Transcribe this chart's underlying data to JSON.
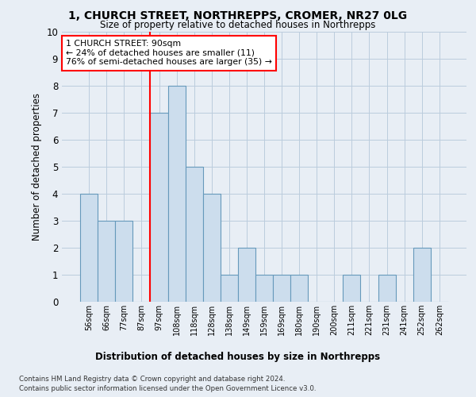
{
  "title_line1": "1, CHURCH STREET, NORTHREPPS, CROMER, NR27 0LG",
  "title_line2": "Size of property relative to detached houses in Northrepps",
  "xlabel": "Distribution of detached houses by size in Northrepps",
  "ylabel": "Number of detached properties",
  "footnote_line1": "Contains HM Land Registry data © Crown copyright and database right 2024.",
  "footnote_line2": "Contains public sector information licensed under the Open Government Licence v3.0.",
  "bin_labels": [
    "56sqm",
    "66sqm",
    "77sqm",
    "87sqm",
    "97sqm",
    "108sqm",
    "118sqm",
    "128sqm",
    "138sqm",
    "149sqm",
    "159sqm",
    "169sqm",
    "180sqm",
    "190sqm",
    "200sqm",
    "211sqm",
    "221sqm",
    "231sqm",
    "241sqm",
    "252sqm",
    "262sqm"
  ],
  "bar_values": [
    4,
    3,
    3,
    0,
    7,
    8,
    5,
    4,
    1,
    2,
    1,
    1,
    1,
    0,
    0,
    1,
    0,
    1,
    0,
    2,
    0
  ],
  "bar_color": "#ccdded",
  "bar_edge_color": "#6699bb",
  "annotation_text": "1 CHURCH STREET: 90sqm\n← 24% of detached houses are smaller (11)\n76% of semi-detached houses are larger (35) →",
  "annotation_box_facecolor": "white",
  "annotation_box_edgecolor": "red",
  "vline_color": "red",
  "vline_x": 3.5,
  "ylim": [
    0,
    10
  ],
  "yticks": [
    0,
    1,
    2,
    3,
    4,
    5,
    6,
    7,
    8,
    9,
    10
  ],
  "grid_color": "#bbccdd",
  "background_color": "#e8eef5"
}
